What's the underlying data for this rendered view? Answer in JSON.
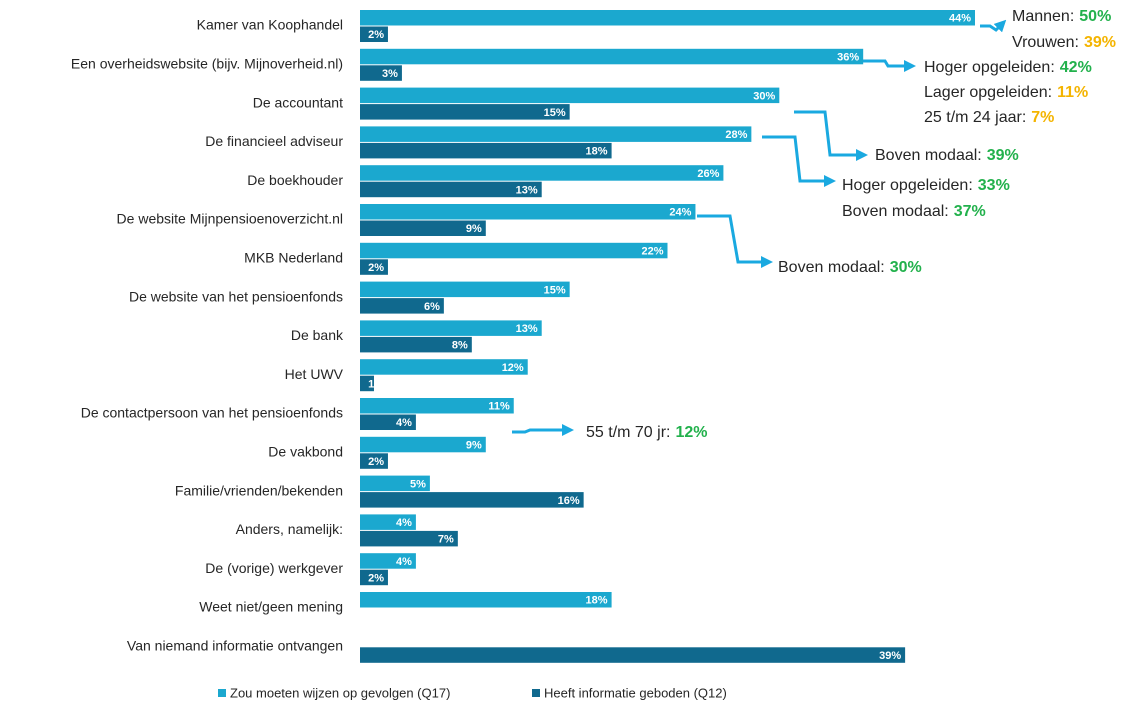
{
  "chart_data": {
    "type": "bar",
    "orientation": "horizontal",
    "categories": [
      "Kamer van Koophandel",
      "Een overheidswebsite (bijv. Mijnoverheid.nl)",
      "De accountant",
      "De financieel adviseur",
      "De boekhouder",
      "De website Mijnpensioenoverzicht.nl",
      "MKB Nederland",
      "De website van het pensioenfonds",
      "De bank",
      "Het UWV",
      "De contactpersoon van het pensioenfonds",
      "De vakbond",
      "Familie/vrienden/bekenden",
      "Anders, namelijk:",
      "De (vorige) werkgever",
      "Weet niet/geen mening",
      "Van niemand informatie ontvangen"
    ],
    "series": [
      {
        "name": "Zou moeten wijzen op gevolgen (Q17)",
        "color": "#1ba8cf",
        "values": [
          44,
          36,
          30,
          28,
          26,
          24,
          22,
          15,
          13,
          12,
          11,
          9,
          5,
          4,
          4,
          18,
          null
        ],
        "value_labels": [
          "44%",
          "36%",
          "30%",
          "28%",
          "26%",
          "24%",
          "22%",
          "15%",
          "13%",
          "12%",
          "11%",
          "9%",
          "5%",
          "4%",
          "4%",
          "18%",
          null
        ]
      },
      {
        "name": "Heeft informatie geboden (Q12)",
        "color": "#10698e",
        "values": [
          2,
          3,
          15,
          18,
          13,
          9,
          2,
          6,
          8,
          1,
          4,
          2,
          16,
          7,
          2,
          null,
          39
        ],
        "value_labels": [
          "2%",
          "3%",
          "15%",
          "18%",
          "13%",
          "9%",
          "2%",
          "6%",
          "8%",
          "1%",
          "4%",
          "2%",
          "16%",
          "7%",
          "2%",
          null,
          "39%"
        ]
      }
    ],
    "legend": "bottom",
    "annotations": [
      {
        "lines": [
          {
            "label": "Mannen:",
            "value": "50%",
            "color": "#22b14c"
          },
          {
            "label": "Vrouwen:",
            "value": "39%",
            "color": "#f4b400"
          }
        ]
      },
      {
        "lines": [
          {
            "label": "Hoger opgeleiden:",
            "value": "42%",
            "color": "#22b14c"
          },
          {
            "label": "Lager opgeleiden:",
            "value": "11%",
            "color": "#f4b400"
          },
          {
            "label": "25 t/m 24 jaar:",
            "value": "7%",
            "color": "#f4b400"
          }
        ]
      },
      {
        "lines": [
          {
            "label": "Boven modaal:",
            "value": "39%",
            "color": "#22b14c"
          }
        ]
      },
      {
        "lines": [
          {
            "label": "Hoger opgeleiden:",
            "value": "33%",
            "color": "#22b14c"
          },
          {
            "label": "Boven modaal:",
            "value": "37%",
            "color": "#22b14c"
          }
        ]
      },
      {
        "lines": [
          {
            "label": "Boven modaal:",
            "value": "30%",
            "color": "#22b14c"
          }
        ]
      },
      {
        "lines": [
          {
            "label": "55 t/m 70 jr:",
            "value": "12%",
            "color": "#22b14c"
          }
        ]
      }
    ]
  }
}
